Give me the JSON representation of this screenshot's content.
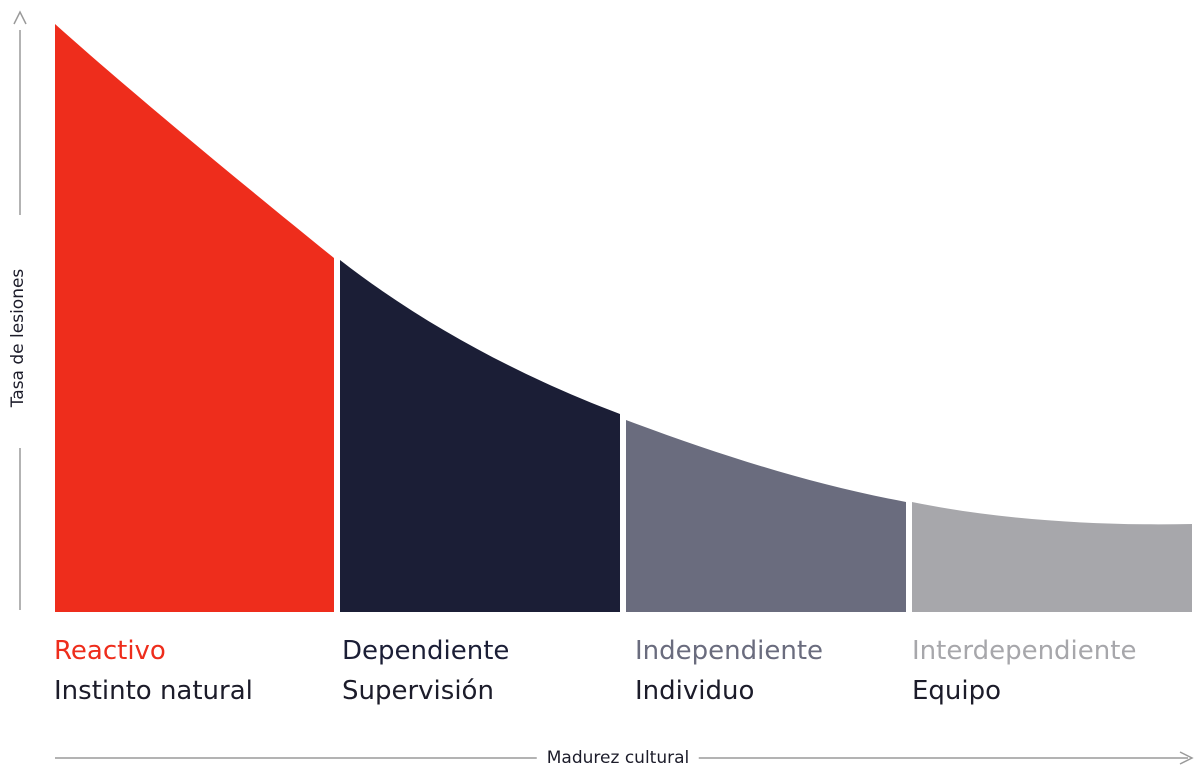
{
  "diagram": {
    "y_axis_label": "Tasa de lesiones",
    "x_axis_label": "Madurez cultural",
    "stages": [
      {
        "name": "Reactivo",
        "subtitle": "Instinto natural",
        "fill": "#ee2d1c",
        "label_color": "#ee2d1c"
      },
      {
        "name": "Dependiente",
        "subtitle": "Supervisión",
        "fill": "#1b1e36",
        "label_color": "#1b1e36"
      },
      {
        "name": "Independiente",
        "subtitle": "Individuo",
        "fill": "#6a6c7e",
        "label_color": "#6a6c7e"
      },
      {
        "name": "Interdependiente",
        "subtitle": "Equipo",
        "fill": "#a7a7ab",
        "label_color": "#a7a7ab"
      }
    ],
    "axis_color": "#9a9a9a"
  }
}
